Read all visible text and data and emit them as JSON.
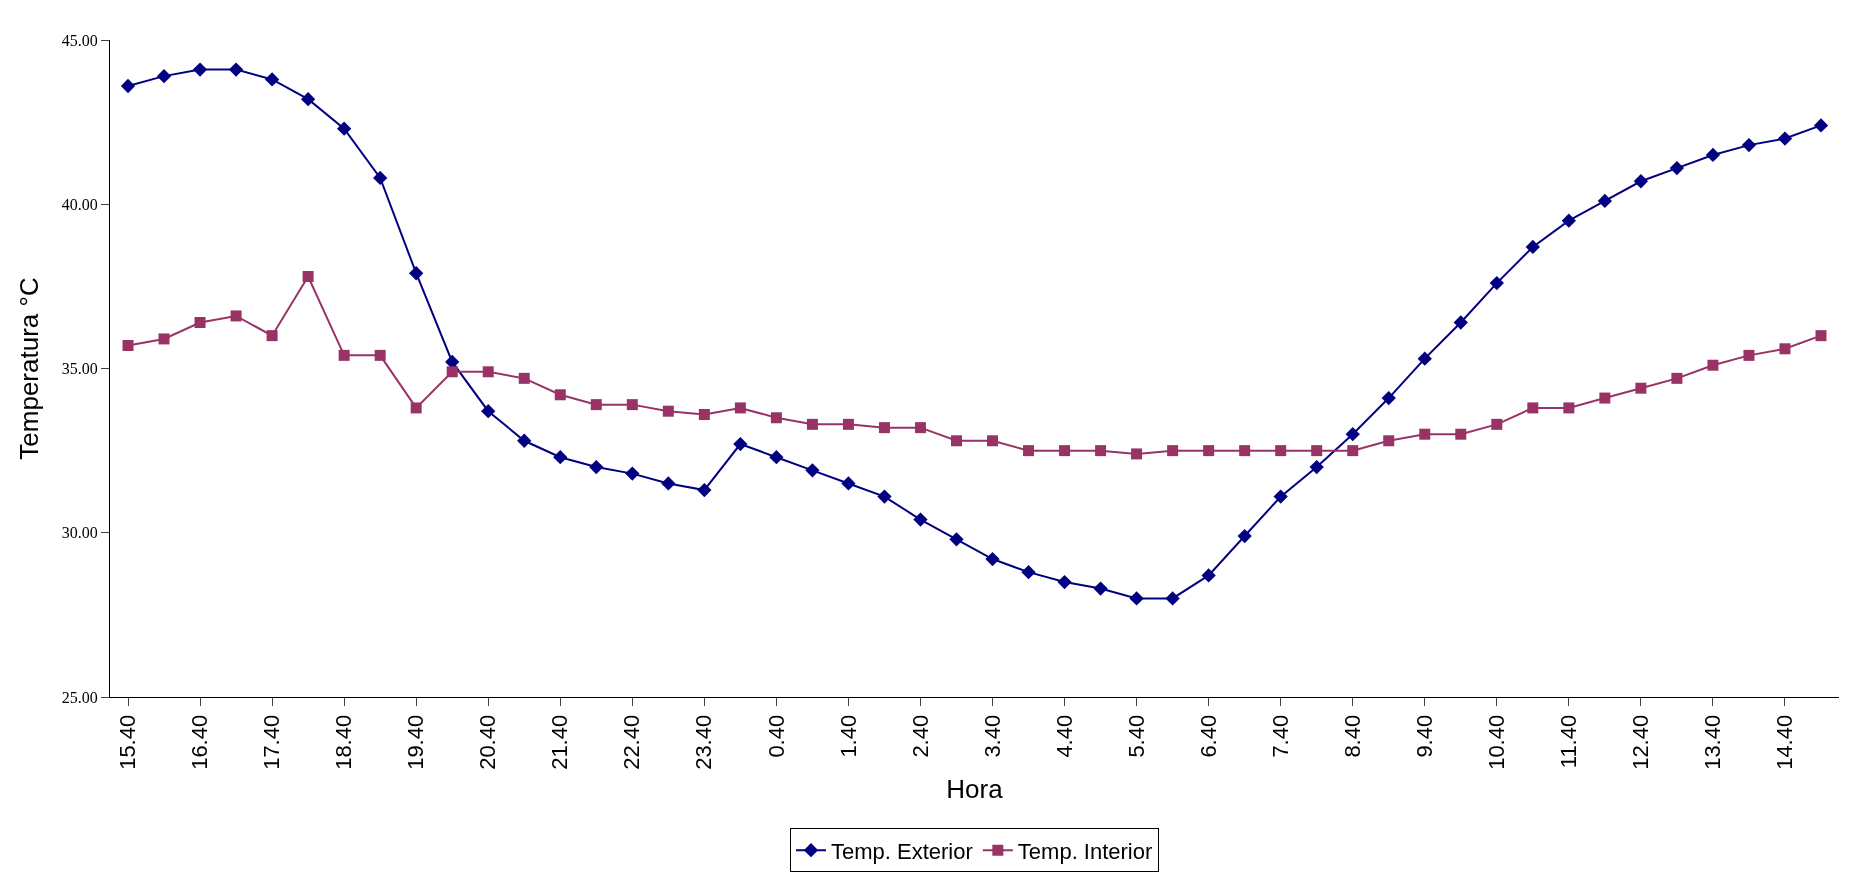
{
  "chart_data": {
    "type": "line",
    "xlabel": "Hora",
    "ylabel": "Temperatura °C",
    "categories": [
      "15.40",
      null,
      "16.40",
      null,
      "17.40",
      null,
      "18.40",
      null,
      "19.40",
      null,
      "20.40",
      null,
      "21.40",
      null,
      "22.40",
      null,
      "23.40",
      null,
      "0.40",
      null,
      "1.40",
      null,
      "2.40",
      null,
      "3.40",
      null,
      "4.40",
      null,
      "5.40",
      null,
      "6.40",
      null,
      "7.40",
      null,
      "8.40",
      null,
      "9.40",
      null,
      "10.40",
      null,
      "11.40",
      null,
      "12.40",
      null,
      "13.40",
      null,
      "14.40",
      null
    ],
    "series": [
      {
        "name": "Temp. Exterior",
        "color": "#000080",
        "marker": "diamond",
        "values": [
          43.6,
          43.9,
          44.1,
          44.1,
          43.8,
          43.2,
          42.3,
          40.8,
          37.9,
          35.2,
          33.7,
          32.8,
          32.3,
          32.0,
          31.8,
          31.5,
          31.3,
          32.7,
          32.3,
          31.9,
          31.5,
          31.1,
          30.4,
          29.8,
          29.2,
          28.8,
          28.5,
          28.3,
          28.0,
          28.0,
          28.7,
          29.9,
          31.1,
          32.0,
          33.0,
          34.1,
          35.3,
          36.4,
          37.6,
          38.7,
          39.5,
          40.1,
          40.7,
          41.1,
          41.5,
          41.8,
          42.0,
          42.4
        ]
      },
      {
        "name": "Temp. Interior",
        "color": "#993366",
        "marker": "square",
        "values": [
          35.7,
          35.9,
          36.4,
          36.6,
          36.0,
          37.8,
          35.4,
          35.4,
          33.8,
          34.9,
          34.9,
          34.7,
          34.2,
          33.9,
          33.9,
          33.7,
          33.6,
          33.8,
          33.5,
          33.3,
          33.3,
          33.2,
          33.2,
          32.8,
          32.8,
          32.5,
          32.5,
          32.5,
          32.4,
          32.5,
          32.5,
          32.5,
          32.5,
          32.5,
          32.5,
          32.8,
          33.0,
          33.0,
          33.3,
          33.8,
          33.8,
          34.1,
          34.4,
          34.7,
          35.1,
          35.4,
          35.6,
          36.0
        ]
      }
    ],
    "ylim": [
      25,
      45
    ],
    "yticks": [
      {
        "value": 25,
        "label": "25.00"
      },
      {
        "value": 30,
        "label": "30.00"
      },
      {
        "value": 35,
        "label": "35.00"
      },
      {
        "value": 40,
        "label": "40.00"
      },
      {
        "value": 45,
        "label": "45.00"
      }
    ],
    "legend": "bottom",
    "line_style": "solid"
  }
}
